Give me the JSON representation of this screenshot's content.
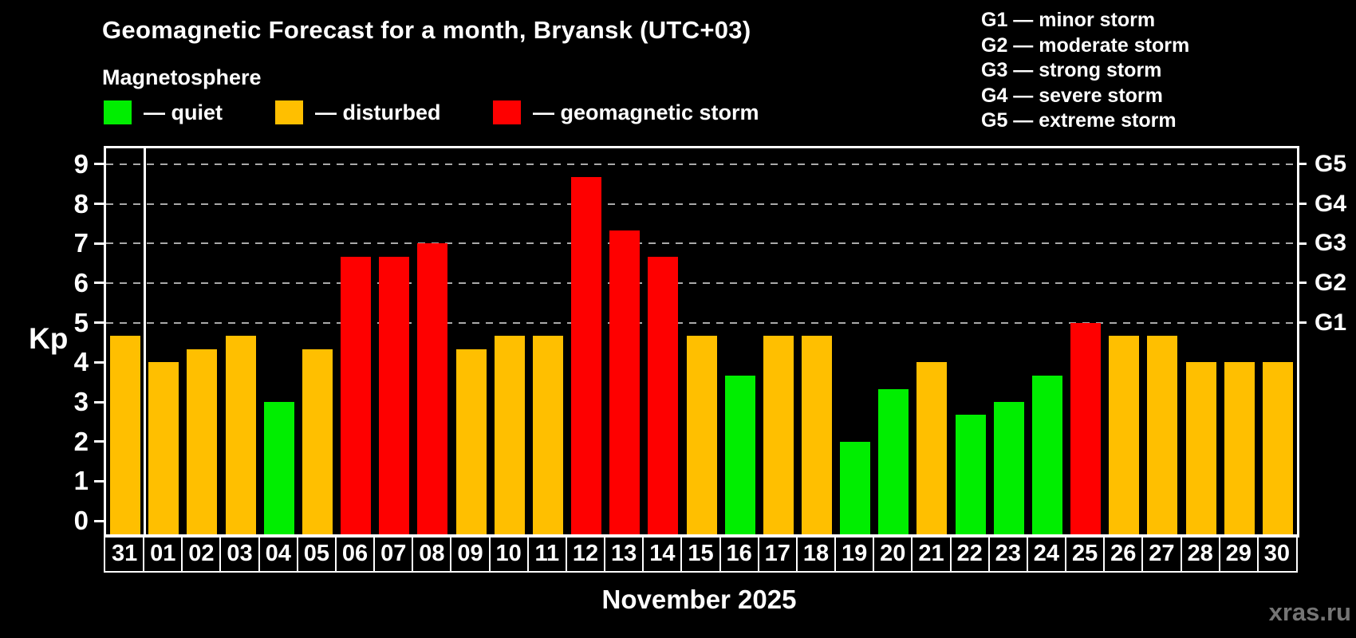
{
  "header": {
    "title": "Geomagnetic Forecast for a month, Bryansk (UTC+03)",
    "subtitle": "Magnetosphere",
    "legend": [
      {
        "state": "quiet",
        "label": "— quiet",
        "color": "#00ee00"
      },
      {
        "state": "disturbed",
        "label": "— disturbed",
        "color": "#ffbf00"
      },
      {
        "state": "storm",
        "label": "— geomagnetic storm",
        "color": "#fe0000"
      }
    ],
    "g_legend": [
      "G1 — minor storm",
      "G2 — moderate storm",
      "G3 — strong storm",
      "G4 — severe storm",
      "G5 — extreme storm"
    ]
  },
  "chart_data": {
    "type": "bar",
    "title": "Geomagnetic Forecast for a month, Bryansk (UTC+03)",
    "ylabel": "Kp",
    "xlabel": "November 2025",
    "ylim": [
      0,
      9
    ],
    "yticks": [
      0,
      1,
      2,
      3,
      4,
      5,
      6,
      7,
      8,
      9
    ],
    "grid_kp": [
      5,
      6,
      7,
      8,
      9
    ],
    "right_ticks": [
      {
        "kp": 5,
        "label": "G1"
      },
      {
        "kp": 6,
        "label": "G2"
      },
      {
        "kp": 7,
        "label": "G3"
      },
      {
        "kp": 8,
        "label": "G4"
      },
      {
        "kp": 9,
        "label": "G5"
      }
    ],
    "legend_position": "top",
    "grid": true,
    "categories": [
      "31",
      "01",
      "02",
      "03",
      "04",
      "05",
      "06",
      "07",
      "08",
      "09",
      "10",
      "11",
      "12",
      "13",
      "14",
      "15",
      "16",
      "17",
      "18",
      "19",
      "20",
      "21",
      "22",
      "23",
      "24",
      "25",
      "26",
      "27",
      "28",
      "29",
      "30"
    ],
    "values": [
      4.67,
      4.0,
      4.33,
      4.67,
      3.0,
      4.33,
      6.67,
      6.67,
      7.0,
      4.33,
      4.67,
      4.67,
      8.67,
      7.33,
      6.67,
      4.67,
      3.67,
      4.67,
      4.67,
      2.0,
      3.33,
      4.0,
      2.67,
      3.0,
      3.67,
      5.0,
      4.67,
      4.67,
      4.0,
      4.0,
      4.0
    ],
    "states": [
      "disturbed",
      "disturbed",
      "disturbed",
      "disturbed",
      "quiet",
      "disturbed",
      "storm",
      "storm",
      "storm",
      "disturbed",
      "disturbed",
      "disturbed",
      "storm",
      "storm",
      "storm",
      "disturbed",
      "quiet",
      "disturbed",
      "disturbed",
      "quiet",
      "quiet",
      "disturbed",
      "quiet",
      "quiet",
      "quiet",
      "storm",
      "disturbed",
      "disturbed",
      "disturbed",
      "disturbed",
      "disturbed"
    ],
    "colors": {
      "quiet": "#00ee00",
      "disturbed": "#ffbf00",
      "storm": "#fe0000"
    },
    "separator_after_index": 0
  },
  "footer": {
    "caption": "November 2025",
    "watermark": "xras.ru"
  }
}
